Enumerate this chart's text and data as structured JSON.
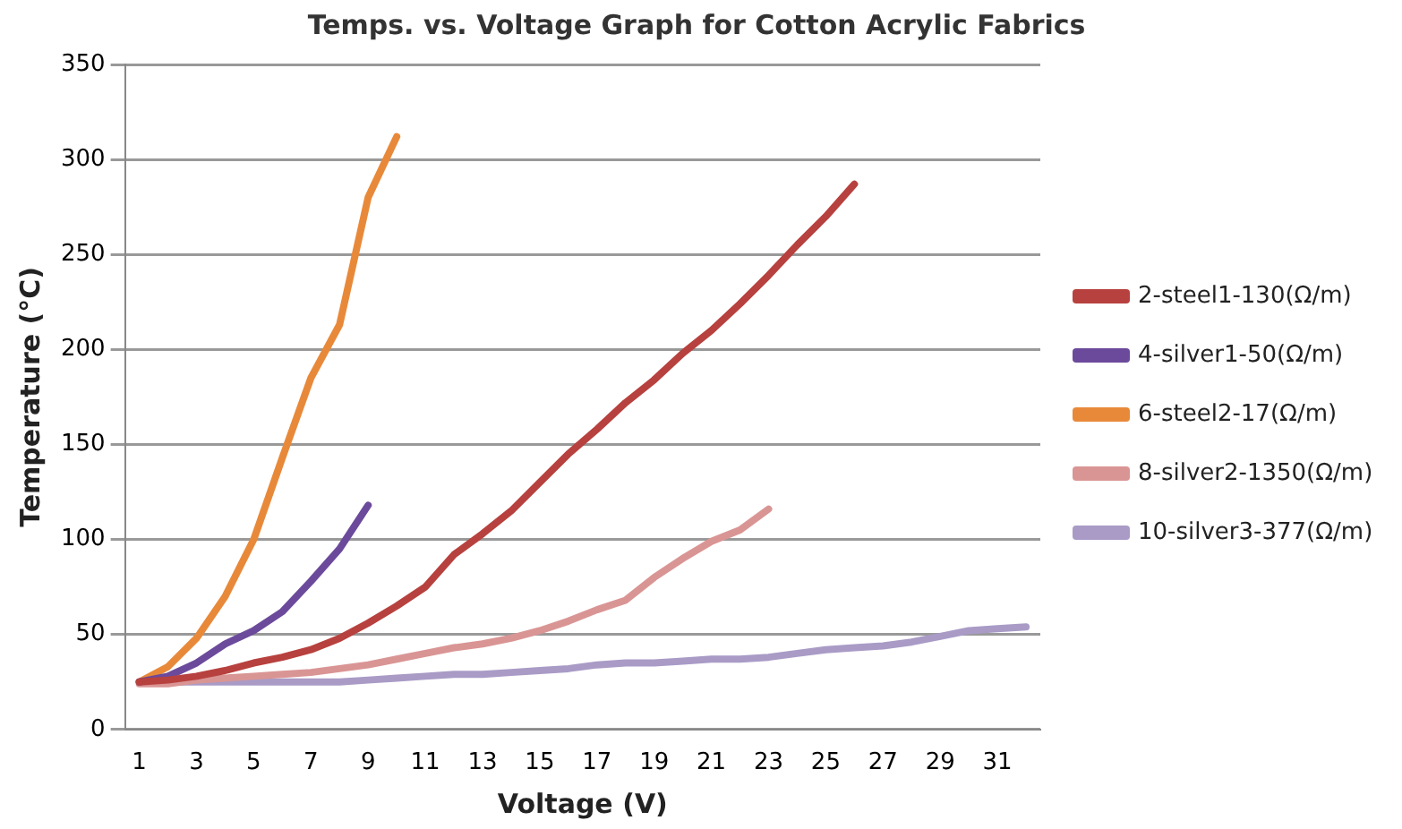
{
  "chart_data": {
    "type": "line",
    "title": "Temps. vs. Voltage Graph for Cotton Acrylic Fabrics",
    "xlabel": "Voltage (V)",
    "ylabel": "Temperature (°C)",
    "xlim": [
      0.5,
      32.5
    ],
    "xticks": [
      1,
      3,
      5,
      7,
      9,
      11,
      13,
      15,
      17,
      19,
      21,
      23,
      25,
      27,
      29,
      31
    ],
    "ylim": [
      0,
      350
    ],
    "yticks": [
      0,
      50,
      100,
      150,
      200,
      250,
      300,
      350
    ],
    "grid": "y",
    "legend": "right",
    "marker": "none",
    "line_style": "solid",
    "series": [
      {
        "name": "2-steel1-130(Ω/m)",
        "color": "#b7413e",
        "x": [
          1,
          2,
          3,
          4,
          5,
          6,
          7,
          8,
          9,
          10,
          11,
          12,
          13,
          14,
          15,
          16,
          17,
          18,
          19,
          20,
          21,
          22,
          23,
          24,
          25,
          26
        ],
        "values": [
          25,
          26,
          28,
          31,
          35,
          38,
          42,
          48,
          56,
          65,
          75,
          92,
          103,
          115,
          130,
          145,
          158,
          172,
          184,
          198,
          210,
          224,
          239,
          255,
          270,
          287
        ]
      },
      {
        "name": "4-silver1-50(Ω/m)",
        "color": "#6c4a9b",
        "x": [
          1,
          2,
          3,
          4,
          5,
          6,
          7,
          8,
          9
        ],
        "values": [
          25,
          28,
          35,
          45,
          52,
          62,
          78,
          95,
          118
        ]
      },
      {
        "name": "6-steel2-17(Ω/m)",
        "color": "#e8893a",
        "x": [
          1,
          2,
          3,
          4,
          5,
          6,
          7,
          8,
          9,
          10
        ],
        "values": [
          25,
          33,
          48,
          70,
          100,
          143,
          185,
          213,
          280,
          312
        ]
      },
      {
        "name": "8-silver2-1350(Ω/m)",
        "color": "#d99594",
        "x": [
          1,
          2,
          3,
          4,
          5,
          6,
          7,
          8,
          9,
          10,
          11,
          12,
          13,
          14,
          15,
          16,
          17,
          18,
          19,
          20,
          21,
          22,
          23
        ],
        "values": [
          24,
          24,
          26,
          27,
          28,
          29,
          30,
          32,
          34,
          37,
          40,
          43,
          45,
          48,
          52,
          57,
          63,
          68,
          80,
          90,
          99,
          105,
          116
        ]
      },
      {
        "name": "10-silver3-377(Ω/m)",
        "color": "#a99bc6",
        "x": [
          1,
          2,
          3,
          4,
          5,
          6,
          7,
          8,
          9,
          10,
          11,
          12,
          13,
          14,
          15,
          16,
          17,
          18,
          19,
          20,
          21,
          22,
          23,
          24,
          25,
          26,
          27,
          28,
          29,
          30,
          31,
          32
        ],
        "values": [
          25,
          25,
          25,
          25,
          25,
          25,
          25,
          25,
          26,
          27,
          28,
          29,
          29,
          30,
          31,
          32,
          34,
          35,
          35,
          36,
          37,
          37,
          38,
          40,
          42,
          43,
          44,
          46,
          49,
          52,
          53,
          54
        ]
      }
    ]
  }
}
